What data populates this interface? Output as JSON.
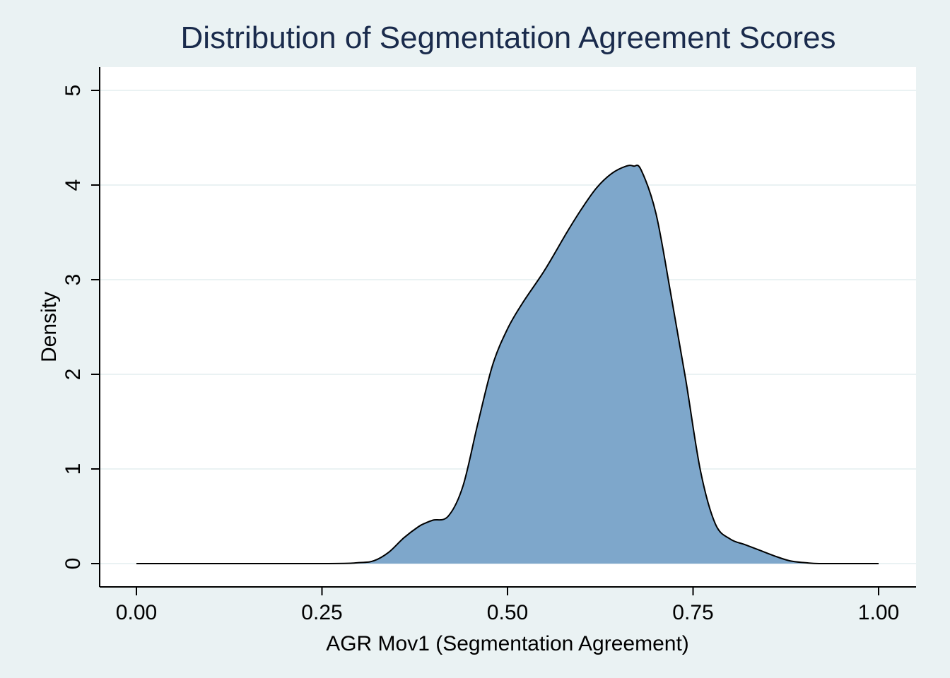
{
  "colors": {
    "page_background": "#eaf2f3",
    "plot_background": "#ffffff",
    "title": "#1a2b4c",
    "fill": "#7ea7cb",
    "line": "#000000",
    "gridline": "#eaf2f3"
  },
  "chart_data": {
    "type": "area",
    "title": "Distribution of Segmentation Agreement Scores",
    "xlabel": "AGR Mov1 (Segmentation Agreement)",
    "ylabel": "Density",
    "xlim": [
      0.0,
      1.0
    ],
    "ylim": [
      0,
      5
    ],
    "x_ticks": [
      0.0,
      0.25,
      0.5,
      0.75,
      1.0
    ],
    "x_tick_labels": [
      "0.00",
      "0.25",
      "0.50",
      "0.75",
      "1.00"
    ],
    "y_ticks": [
      0,
      1,
      2,
      3,
      4,
      5
    ],
    "y_tick_labels": [
      "0",
      "1",
      "2",
      "3",
      "4",
      "5"
    ],
    "grid": true,
    "legend": "none",
    "series": [
      {
        "x": [
          0.0,
          0.25,
          0.3,
          0.32,
          0.34,
          0.36,
          0.38,
          0.39,
          0.4,
          0.42,
          0.44,
          0.46,
          0.48,
          0.5,
          0.52,
          0.55,
          0.58,
          0.6,
          0.62,
          0.64,
          0.66,
          0.67,
          0.68,
          0.7,
          0.72,
          0.74,
          0.76,
          0.78,
          0.8,
          0.82,
          0.84,
          0.86,
          0.88,
          0.9,
          0.92,
          0.95,
          1.0
        ],
        "y": [
          0.0,
          0.0,
          0.01,
          0.03,
          0.12,
          0.27,
          0.39,
          0.43,
          0.46,
          0.5,
          0.82,
          1.48,
          2.1,
          2.48,
          2.75,
          3.1,
          3.5,
          3.75,
          3.97,
          4.12,
          4.2,
          4.2,
          4.16,
          3.7,
          2.85,
          1.95,
          0.98,
          0.42,
          0.26,
          0.2,
          0.14,
          0.08,
          0.03,
          0.01,
          0.0,
          0.0,
          0.0
        ]
      }
    ]
  }
}
